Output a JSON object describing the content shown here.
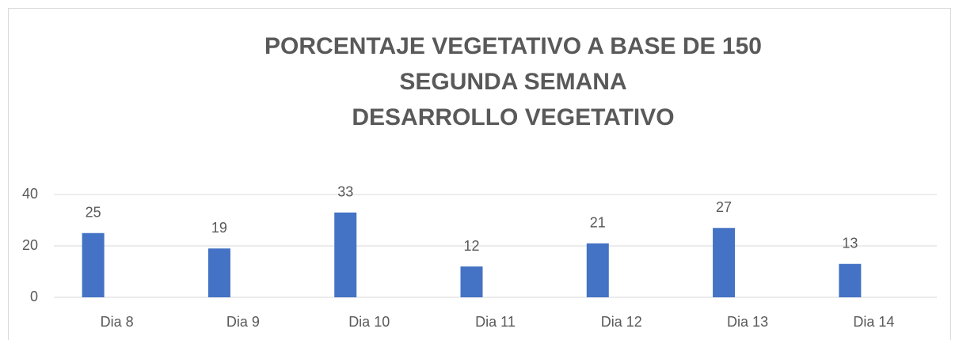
{
  "chart_data": {
    "type": "bar",
    "title": [
      "PORCENTAJE VEGETATIVO A BASE DE 150",
      "SEGUNDA SEMANA",
      "DESARROLLO VEGETATIVO"
    ],
    "categories": [
      "Dia 8",
      "Dia 9",
      "Dia 10",
      "Dia 11",
      "Dia 12",
      "Dia 13",
      "Dia 14"
    ],
    "values": [
      25,
      19,
      33,
      12,
      21,
      27,
      13
    ],
    "color": "#4472c4",
    "ylim": [
      0,
      40
    ],
    "yticks": [
      0,
      20,
      40
    ],
    "grid": true
  }
}
